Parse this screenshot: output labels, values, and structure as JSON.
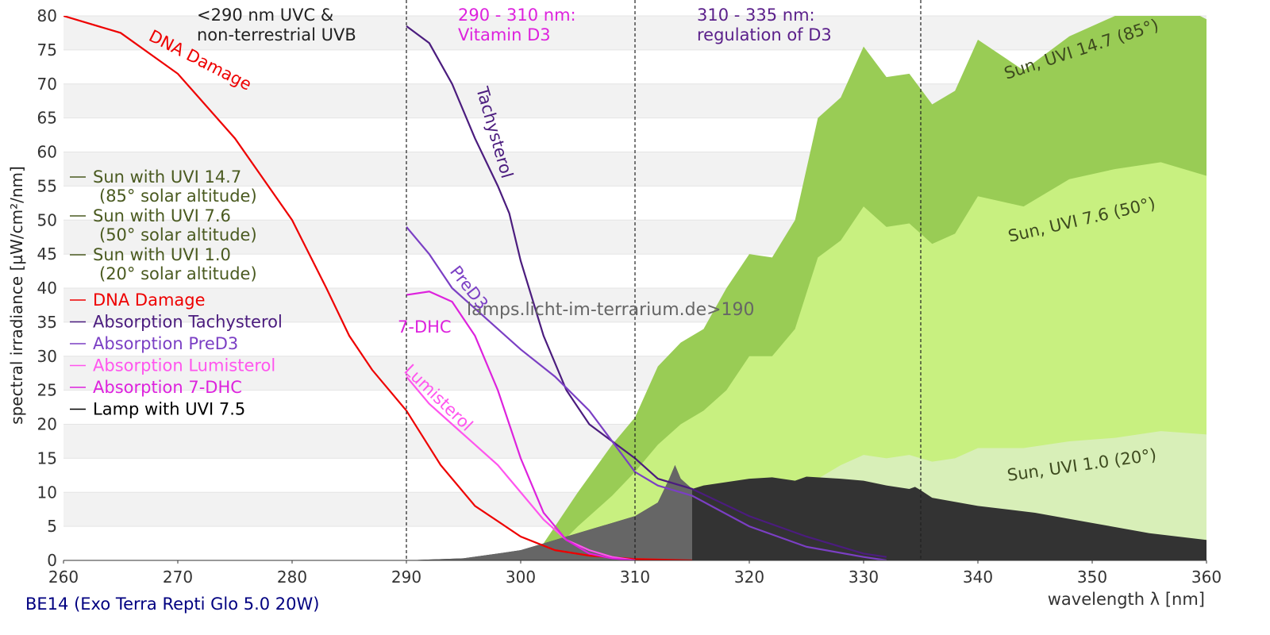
{
  "chart_data": {
    "type": "line",
    "x_label": "wavelength λ [nm]",
    "y_label": "spectral irradiance [µW/cm²/nm]",
    "footer": "BE14 (Exo Terra Repti Glo 5.0 20W)",
    "watermark": "lamps.licht-im-terrarium.de>190",
    "annotations": [
      [
        "<290 nm UVC &",
        "non-terrestrial UVB"
      ],
      [
        "290 - 310 nm:",
        "Vitamin D3"
      ],
      [
        "310 - 335 nm:",
        "regulation of D3"
      ]
    ],
    "vlines": [
      290,
      310,
      335
    ],
    "xlim": [
      260,
      360
    ],
    "xticks": [
      260,
      270,
      280,
      290,
      300,
      310,
      320,
      330,
      340,
      350,
      360
    ],
    "ylim": [
      0,
      80
    ],
    "yticks": [
      0,
      5,
      10,
      15,
      20,
      25,
      30,
      35,
      40,
      45,
      50,
      55,
      60,
      65,
      70,
      75,
      80
    ],
    "grid": "bands",
    "series": [
      {
        "name": "Sun with UVI 14.7",
        "legend_sub": "(85° solar altitude)",
        "label": "Sun, UVI 14.7 (85°)",
        "style": "area",
        "color": "#99cc55",
        "x": [
          301,
          303,
          305,
          308,
          310,
          312,
          314,
          316,
          318,
          320,
          322,
          324,
          326,
          328,
          330,
          332,
          334,
          336,
          338,
          340,
          344,
          348,
          352,
          356,
          360
        ],
        "values": [
          0,
          5,
          10,
          17,
          21,
          28.5,
          32,
          34,
          40,
          45,
          44.5,
          50,
          65,
          68,
          75.5,
          71,
          71.5,
          67,
          69,
          76.5,
          72,
          77,
          80,
          83,
          79.5
        ]
      },
      {
        "name": "Sun with UVI 7.6",
        "legend_sub": "(50° solar altitude)",
        "label": "Sun, UVI 7.6 (50°)",
        "style": "area",
        "color": "#c8f080",
        "x": [
          302,
          305,
          308,
          310,
          312,
          314,
          316,
          318,
          320,
          322,
          324,
          326,
          328,
          330,
          332,
          334,
          336,
          338,
          340,
          344,
          348,
          352,
          356,
          360
        ],
        "values": [
          0,
          5,
          9.5,
          13,
          17,
          20,
          22,
          25,
          30,
          30,
          34,
          44.5,
          47,
          52,
          49,
          49.5,
          46.5,
          48,
          53.5,
          52,
          56,
          57.5,
          58.5,
          56.5
        ]
      },
      {
        "name": "Sun with UVI 1.0",
        "legend_sub": "(20° solar altitude)",
        "label": "Sun, UVI 1.0 (20°)",
        "style": "area",
        "color": "#d8efb8",
        "x": [
          303,
          305,
          310,
          315,
          320,
          322,
          324,
          326,
          328,
          330,
          332,
          334,
          336,
          338,
          340,
          344,
          348,
          352,
          356,
          360
        ],
        "values": [
          0,
          0.5,
          1.5,
          4,
          7,
          8,
          10,
          12,
          14,
          15.5,
          15,
          15.5,
          14.5,
          15,
          16.5,
          16.5,
          17.5,
          18,
          19,
          18.5
        ]
      },
      {
        "name": "DNA Damage",
        "label": "DNA Damage",
        "style": "line",
        "color": "#ee0000",
        "x": [
          260,
          265,
          270,
          275,
          280,
          283,
          285,
          287,
          290,
          293,
          296,
          300,
          303,
          306,
          310,
          315
        ],
        "values": [
          80,
          77.5,
          71.5,
          62,
          50,
          40,
          33,
          28,
          22,
          14,
          8,
          3.5,
          1.5,
          0.7,
          0.2,
          0
        ]
      },
      {
        "name": "Absorption Tachysterol",
        "label": "Tachysterol",
        "style": "line",
        "color": "#4b1c7e",
        "x": [
          290,
          292,
          294,
          296,
          298,
          299,
          300,
          302,
          304,
          306,
          308,
          310,
          312,
          315,
          320,
          325,
          330,
          332
        ],
        "values": [
          78.5,
          76,
          70,
          62,
          55,
          51,
          44,
          33,
          25,
          20,
          17.5,
          15,
          12,
          10.5,
          6.5,
          3.5,
          1,
          0.5
        ]
      },
      {
        "name": "Absorption PreD3",
        "label": "PreD3",
        "style": "line",
        "color": "#7b3fc4",
        "x": [
          290,
          292,
          294,
          296,
          298,
          300,
          303,
          306,
          310,
          312,
          315,
          320,
          325,
          330,
          332
        ],
        "values": [
          49,
          45,
          40,
          37,
          34,
          31,
          27,
          22,
          13,
          11,
          9.5,
          5,
          2,
          0.5,
          0
        ]
      },
      {
        "name": "Absorption Lumisterol",
        "label": "Lumisterol",
        "style": "line",
        "color": "#ff55ee",
        "x": [
          290,
          292,
          294,
          296,
          298,
          300,
          302,
          304,
          306,
          308,
          310
        ],
        "values": [
          27,
          23,
          20,
          17,
          14,
          10,
          6,
          3,
          1.5,
          0.5,
          0
        ]
      },
      {
        "name": "Absorption 7-DHC",
        "label": "7-DHC",
        "style": "line",
        "color": "#dd22dd",
        "x": [
          290,
          292,
          294,
          296,
          298,
          300,
          302,
          304,
          306,
          308,
          310
        ],
        "values": [
          39,
          39.5,
          38,
          33,
          25,
          15,
          7,
          3,
          1,
          0.3,
          0
        ]
      },
      {
        "name": "Lamp with UVI 7.5",
        "style": "area",
        "color": "#333333",
        "highlight": [
          290,
          315
        ],
        "highlight_color": "#666666",
        "x": [
          290,
          295,
          298,
          300,
          302,
          304,
          306,
          308,
          310,
          312,
          313,
          313.5,
          314,
          315,
          316,
          318,
          320,
          322,
          324,
          325,
          328,
          330,
          332,
          334,
          334.5,
          335,
          336,
          340,
          345,
          350,
          355,
          360
        ],
        "values": [
          0,
          0.3,
          1,
          1.5,
          2.5,
          3.5,
          4.5,
          5.5,
          6.5,
          8.5,
          12,
          14,
          12,
          10.5,
          11,
          11.5,
          12,
          12.2,
          11.7,
          12.3,
          12,
          11.7,
          11,
          10.5,
          10.8,
          10.3,
          9.2,
          8,
          7,
          5.5,
          4,
          3
        ]
      }
    ]
  }
}
